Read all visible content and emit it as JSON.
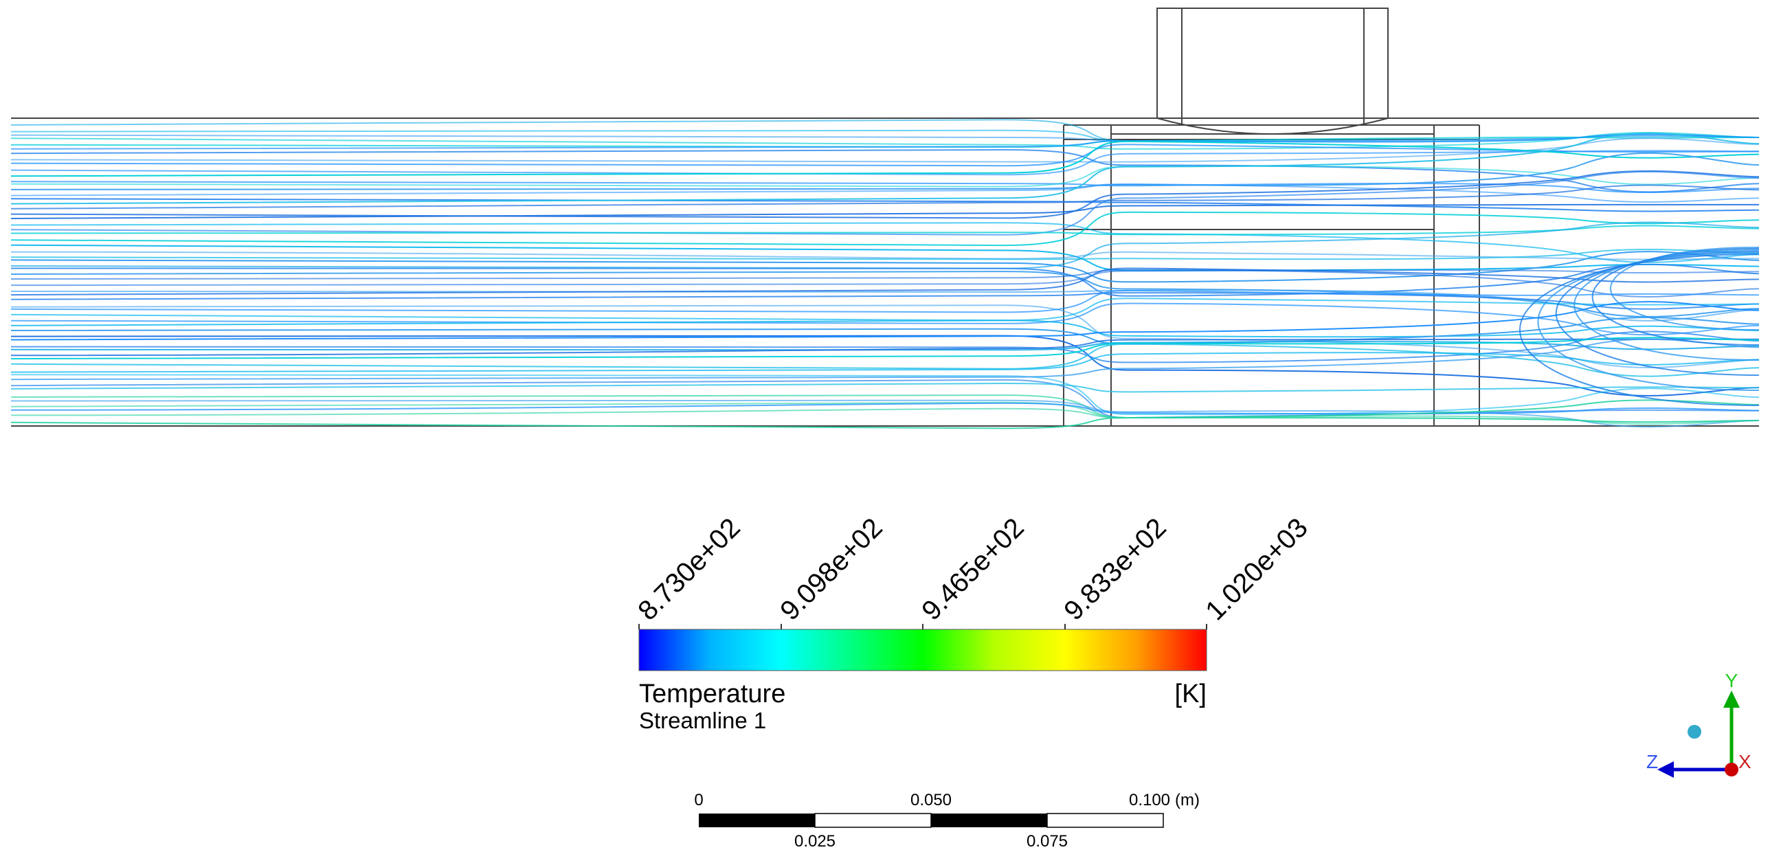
{
  "colorbar": {
    "tick_labels": [
      "8.730e+02",
      "9.098e+02",
      "9.465e+02",
      "9.833e+02",
      "1.020e+03"
    ],
    "variable": "Temperature",
    "unit": "[K]",
    "object_name": "Streamline 1",
    "colors": [
      "#0000ff",
      "#00b4ff",
      "#00ffff",
      "#00ff80",
      "#00ff00",
      "#b4ff00",
      "#ffff00",
      "#ffa000",
      "#ff0000"
    ]
  },
  "scale_bar": {
    "top_labels": [
      "0",
      "0.050",
      "0.100"
    ],
    "unit": "(m)",
    "bottom_labels": [
      "0.025",
      "0.075"
    ]
  },
  "axes": {
    "y": "Y",
    "z": "Z",
    "x": "X",
    "colors": {
      "y": "#00aa00",
      "z": "#0000cc",
      "x": "#cc0000",
      "dot": "#33aacc"
    }
  }
}
